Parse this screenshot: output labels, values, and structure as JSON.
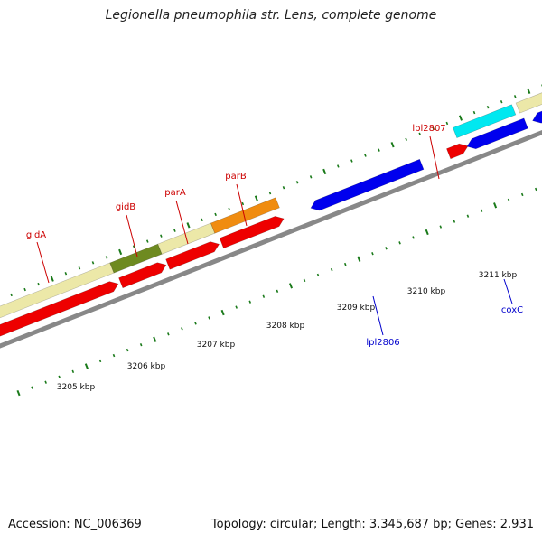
{
  "title": "Legionella pneumophila str. Lens, complete genome",
  "footer": {
    "accession": "Accession: NC_006369",
    "summary": "Topology: circular; Length: 3,345,687 bp; Genes: 2,931"
  },
  "ticks": [
    {
      "label": "3205 kbp"
    },
    {
      "label": "3206 kbp"
    },
    {
      "label": "3207 kbp"
    },
    {
      "label": "3208 kbp"
    },
    {
      "label": "3209 kbp"
    },
    {
      "label": "3210 kbp"
    },
    {
      "label": "3211 kbp"
    }
  ],
  "gene_labels": [
    {
      "name": "gidA",
      "color": "#cc0000"
    },
    {
      "name": "gidB",
      "color": "#cc0000"
    },
    {
      "name": "parA",
      "color": "#cc0000"
    },
    {
      "name": "parB",
      "color": "#cc0000"
    },
    {
      "name": "lpl2807",
      "color": "#cc0000"
    },
    {
      "name": "lpl2806",
      "color": "#0000cc"
    },
    {
      "name": "coxC",
      "color": "#0000cc"
    }
  ],
  "colors": {
    "forward_cds": "#ee0000",
    "reverse_cds": "#0000ee",
    "backbone": "#888888",
    "tick": "#1a7a1a",
    "cog_pale": "#ece8a8",
    "cog_olive": "#6e8a20",
    "cog_orange": "#f08c10",
    "cog_cyan": "#00e8f0"
  }
}
